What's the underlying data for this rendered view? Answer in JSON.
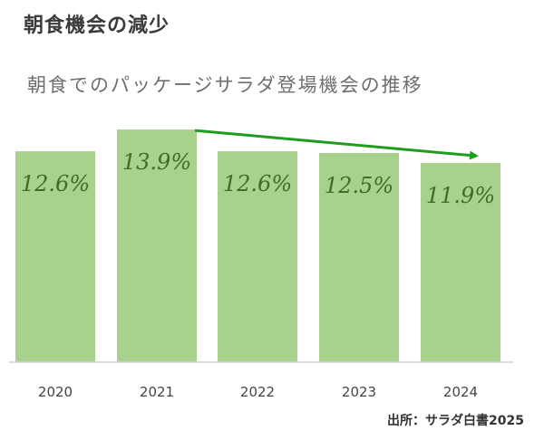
{
  "heading": "朝食機会の減少",
  "source": "出所：サラダ白書2025",
  "colors": {
    "bar": "#a9d18e",
    "label": "#3c6e28",
    "arrow": "#1f9d1f",
    "axis": "#d0d0d0",
    "tick": "#444444"
  },
  "chart_data": {
    "type": "bar",
    "title": "朝食でのパッケージサラダ登場機会の推移",
    "categories": [
      "2020",
      "2021",
      "2022",
      "2023",
      "2024"
    ],
    "values": [
      12.6,
      13.9,
      12.6,
      12.5,
      11.9
    ],
    "data_labels": [
      "12.6%",
      "13.9%",
      "12.6%",
      "12.5%",
      "11.9%"
    ],
    "unit": "%",
    "ylim": [
      0,
      14.5
    ],
    "grid": false,
    "legend": "none",
    "annotation": "downward-trend-arrow from 2021 to 2024"
  }
}
